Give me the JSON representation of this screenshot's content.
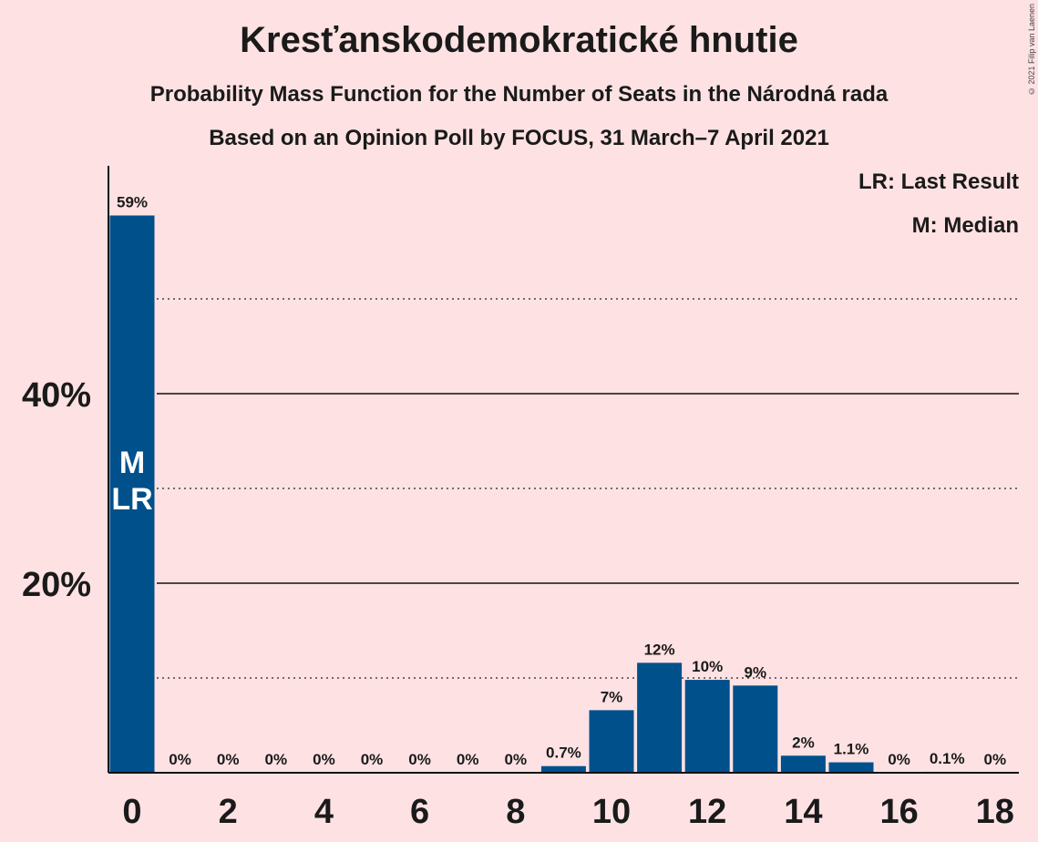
{
  "title": "Kresťanskodemokratické hnutie",
  "subtitle1": "Probability Mass Function for the Number of Seats in the Národná rada",
  "subtitle2": "Based on an Opinion Poll by FOCUS, 31 March–7 April 2021",
  "copyright": "© 2021 Filip van Laenen",
  "legend": {
    "last_result": "LR: Last Result",
    "median": "M: Median"
  },
  "colors": {
    "bar": "#00508C",
    "background": "#FEE2E3",
    "bar_text": "#FFFFFF"
  },
  "chart_data": {
    "type": "bar",
    "x": [
      0,
      1,
      2,
      3,
      4,
      5,
      6,
      7,
      8,
      9,
      10,
      11,
      12,
      13,
      14,
      15,
      16,
      17,
      18
    ],
    "values": [
      58.8,
      0,
      0,
      0,
      0,
      0,
      0,
      0,
      0,
      0.7,
      6.6,
      11.6,
      9.8,
      9.2,
      1.8,
      1.1,
      0,
      0.1,
      0
    ],
    "labels": [
      "59%",
      "0%",
      "0%",
      "0%",
      "0%",
      "0%",
      "0%",
      "0%",
      "0%",
      "0.7%",
      "7%",
      "12%",
      "10%",
      "9%",
      "2%",
      "1.1%",
      "0%",
      "0.1%",
      "0%"
    ],
    "x_tick_labels": [
      "0",
      "2",
      "4",
      "6",
      "8",
      "10",
      "12",
      "14",
      "16",
      "18"
    ],
    "y_tick_labels": [
      "20%",
      "40%"
    ],
    "y_solid_gridlines": [
      20,
      40
    ],
    "y_dotted_gridlines": [
      10,
      30,
      50
    ],
    "ylim": [
      0,
      64
    ],
    "xlabel": "",
    "ylabel": "",
    "bar_annotations": [
      {
        "x": 0,
        "lines": [
          "M",
          "LR"
        ]
      }
    ]
  }
}
